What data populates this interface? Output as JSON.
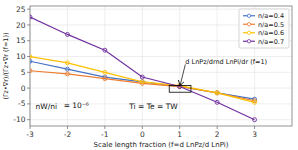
{
  "chart_data": {
    "type": "line",
    "xlabel": "Scale length fraction (f=d LnPz/d LnPi)",
    "ylabel": "(Γz•∇r)/(Γz•∇r (f=1))",
    "x": [
      -3,
      -2,
      -1,
      0,
      1,
      2,
      3
    ],
    "xlim": [
      -3,
      4
    ],
    "ylim": [
      -12,
      26
    ],
    "xticks": [
      -3,
      -2,
      -1,
      0,
      1,
      2,
      3
    ],
    "yticks": [
      -10,
      -5,
      0,
      5,
      10,
      15,
      20,
      25
    ],
    "grid": true,
    "legend": "upper right",
    "marker": "circle",
    "series": [
      {
        "name": "n/a=0.4",
        "color": "#4472C4",
        "values": [
          8.5,
          6.0,
          3.5,
          2.0,
          0.5,
          -1.5,
          -3.5
        ]
      },
      {
        "name": "n/a=0.5",
        "color": "#ED7D31",
        "values": [
          5.5,
          4.5,
          3.0,
          1.5,
          0.5,
          -1.5,
          -4.0
        ]
      },
      {
        "name": "n/a=0.6",
        "color": "#FFC000",
        "values": [
          10.0,
          8.0,
          5.0,
          2.0,
          0.8,
          -1.5,
          -4.5
        ]
      },
      {
        "name": "n/a=0.7",
        "color": "#7030A0",
        "values": [
          22.5,
          17.0,
          12.0,
          3.5,
          0.5,
          -4.5,
          -10.0
        ]
      }
    ],
    "box": {
      "x0": 0.72,
      "y0": -1.3,
      "width": 0.58,
      "height": 2.1
    },
    "annotations": [
      {
        "text": "d LnPz/drnd LnPi/dr (f=1)",
        "x": 1.15,
        "y": 7.5,
        "arrow_x": 1.01,
        "arrow_y": 0.8
      },
      {
        "text": "nW/ni",
        "x": -2.85,
        "y": -4.5
      },
      {
        "text": "= 10⁻⁶",
        "x": -2.1,
        "y": -4.2
      },
      {
        "text": "Ti = Te = TW",
        "x": -0.35,
        "y": -4.5
      }
    ]
  }
}
